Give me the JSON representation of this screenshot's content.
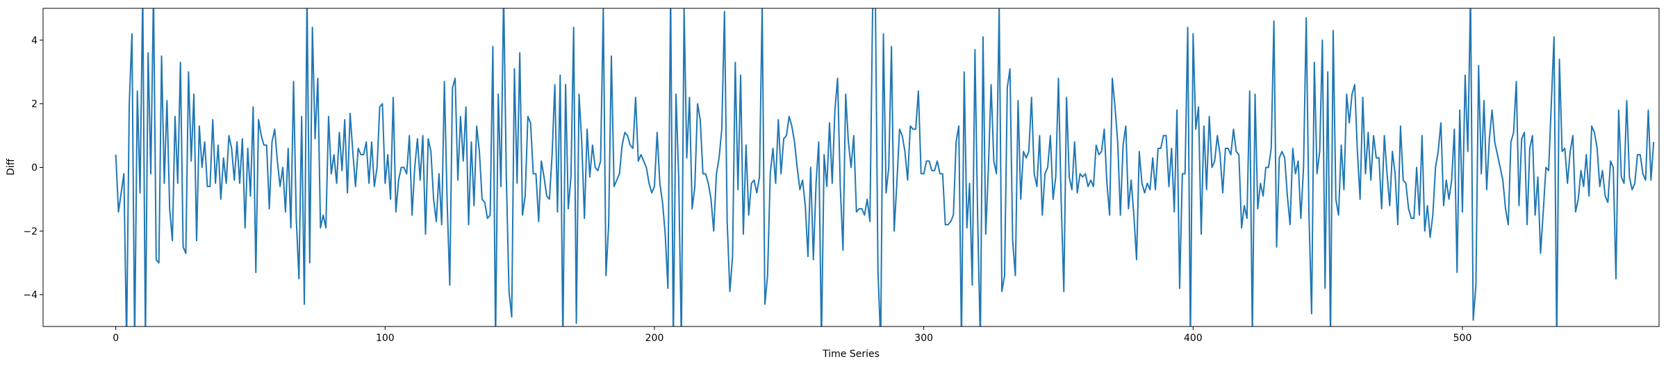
{
  "chart_data": {
    "type": "line",
    "title": "",
    "xlabel": "Time Series",
    "ylabel": "Diff",
    "xlim": [
      -27,
      573
    ],
    "ylim": [
      -5,
      5
    ],
    "xticks": [
      0,
      100,
      200,
      300,
      400,
      500
    ],
    "xtick_labels": [
      "0",
      "100",
      "200",
      "300",
      "400",
      "500"
    ],
    "yticks": [
      -4,
      -2,
      0,
      2,
      4
    ],
    "ytick_labels": [
      "−4",
      "−2",
      "0",
      "2",
      "4"
    ],
    "grid": false,
    "legend": "none",
    "line_color": "#1f77b4",
    "series": [
      {
        "x_start": 0,
        "x_step": 1,
        "values": [
          0.4,
          -1.4,
          -0.8,
          -0.2,
          -5.5,
          2.0,
          4.2,
          -5.5,
          2.4,
          -0.8,
          5.5,
          -5.5,
          3.6,
          -0.2,
          5.5,
          -2.9,
          -3.0,
          3.5,
          -0.5,
          2.1,
          -1.3,
          -2.3,
          1.6,
          -0.5,
          3.3,
          -2.5,
          -2.7,
          3.0,
          0.2,
          2.3,
          -2.3,
          1.3,
          0.0,
          0.8,
          -0.6,
          -0.6,
          1.5,
          -0.5,
          0.7,
          -1.0,
          0.3,
          -0.5,
          1.0,
          0.6,
          -0.4,
          0.8,
          -0.5,
          0.9,
          -1.9,
          0.6,
          -0.9,
          1.9,
          -3.3,
          1.5,
          1.0,
          0.7,
          0.7,
          -1.3,
          0.8,
          1.2,
          0.2,
          -0.6,
          0.0,
          -1.4,
          0.6,
          -1.9,
          2.7,
          -1.6,
          -3.5,
          1.6,
          -4.3,
          5.5,
          -3.0,
          4.4,
          0.9,
          2.8,
          -1.9,
          -1.5,
          -1.9,
          1.6,
          -0.2,
          0.4,
          -0.5,
          1.1,
          -0.1,
          1.5,
          -0.8,
          1.7,
          0.5,
          -0.6,
          0.6,
          0.4,
          0.4,
          0.8,
          -0.5,
          0.8,
          -0.6,
          0.0,
          1.9,
          2.0,
          -0.5,
          0.4,
          -1.0,
          2.2,
          -1.4,
          -0.4,
          0.0,
          0.0,
          -0.2,
          1.0,
          -1.5,
          0.0,
          0.9,
          -0.4,
          1.0,
          -2.1,
          0.9,
          0.5,
          -1.0,
          -1.7,
          -0.2,
          -1.8,
          2.7,
          -1.0,
          -3.7,
          2.5,
          2.8,
          -0.4,
          1.6,
          0.2,
          1.9,
          -1.8,
          0.8,
          -1.2,
          1.3,
          0.5,
          -1.0,
          -1.1,
          -1.6,
          -1.5,
          3.8,
          -5.5,
          2.3,
          -0.6,
          5.5,
          -0.3,
          -3.9,
          -4.7,
          3.1,
          -0.5,
          3.6,
          -1.5,
          -0.9,
          1.6,
          1.4,
          -0.2,
          -0.2,
          -1.7,
          0.2,
          -0.3,
          -0.9,
          -1.0,
          0.4,
          2.6,
          -1.4,
          2.9,
          -5.5,
          2.6,
          -1.3,
          -0.3,
          4.4,
          -4.9,
          2.3,
          0.8,
          -1.6,
          1.2,
          -0.3,
          0.7,
          0.0,
          -0.1,
          0.2,
          5.0,
          -3.4,
          -1.8,
          3.5,
          -0.6,
          -0.4,
          -0.2,
          0.7,
          1.1,
          1.0,
          0.7,
          0.6,
          2.2,
          0.2,
          0.4,
          0.2,
          0.0,
          -0.5,
          -0.8,
          -0.6,
          1.1,
          -0.5,
          -1.1,
          -2.1,
          -3.8,
          5.5,
          -5.5,
          2.3,
          -0.3,
          -5.5,
          5.0,
          0.3,
          2.2,
          -1.3,
          -0.6,
          2.0,
          1.5,
          -0.2,
          -0.2,
          -0.5,
          -1.0,
          -2.0,
          -0.2,
          0.3,
          1.2,
          4.9,
          -1.7,
          -3.9,
          -2.8,
          3.3,
          -0.7,
          2.9,
          -2.1,
          0.7,
          -1.5,
          -0.5,
          -0.4,
          -0.8,
          -0.3,
          5.1,
          -4.3,
          -3.4,
          -0.2,
          0.6,
          -0.5,
          1.5,
          -0.2,
          0.9,
          1.0,
          1.6,
          1.3,
          0.8,
          0.0,
          -0.7,
          -0.4,
          -1.2,
          -2.8,
          0.0,
          -2.9,
          -0.5,
          0.8,
          -5.5,
          0.4,
          -0.6,
          1.4,
          -0.5,
          1.8,
          2.8,
          -0.6,
          -2.6,
          2.3,
          0.8,
          0.0,
          1.0,
          -1.4,
          -1.3,
          -1.3,
          -1.5,
          -1.0,
          -1.7,
          5.0,
          5.5,
          -3.3,
          -5.5,
          4.2,
          -0.8,
          0.0,
          3.8,
          -2.0,
          -0.5,
          1.2,
          1.0,
          0.5,
          -0.4,
          1.3,
          1.2,
          1.2,
          2.4,
          -0.2,
          -0.2,
          0.2,
          0.2,
          -0.1,
          -0.1,
          0.2,
          -0.2,
          -0.2,
          -1.8,
          -1.8,
          -1.7,
          -1.5,
          0.8,
          1.3,
          -5.5,
          3.0,
          -1.9,
          -0.5,
          -3.7,
          3.7,
          -1.6,
          -5.5,
          4.1,
          -2.1,
          0.0,
          2.6,
          0.2,
          -0.2,
          5.0,
          -3.9,
          -3.4,
          2.5,
          3.1,
          -2.3,
          -3.4,
          2.1,
          -1.0,
          0.5,
          0.3,
          0.5,
          2.2,
          -0.2,
          -0.6,
          1.0,
          -1.5,
          -0.2,
          0.0,
          1.0,
          -1.0,
          -0.3,
          2.8,
          -1.0,
          -3.9,
          2.2,
          -0.3,
          -0.7,
          0.8,
          -0.8,
          -0.2,
          -0.3,
          -0.2,
          -0.6,
          -0.4,
          -0.6,
          0.7,
          0.4,
          0.5,
          1.2,
          -0.5,
          -1.5,
          2.8,
          1.9,
          0.8,
          -1.5,
          0.7,
          1.3,
          -1.3,
          -0.4,
          -1.5,
          -2.9,
          0.5,
          -0.5,
          -0.8,
          -0.5,
          -0.7,
          0.3,
          -0.7,
          0.6,
          0.6,
          1.0,
          1.0,
          -0.6,
          0.6,
          -1.4,
          1.8,
          -3.8,
          -0.2,
          -0.2,
          4.4,
          -5.5,
          4.2,
          1.2,
          1.9,
          -2.1,
          1.3,
          -0.7,
          1.6,
          0.0,
          0.2,
          1.0,
          0.4,
          -0.8,
          0.6,
          0.6,
          0.4,
          1.2,
          0.5,
          0.4,
          -1.9,
          -1.2,
          -1.6,
          2.4,
          -5.3,
          2.3,
          -1.3,
          -0.5,
          -0.9,
          0.0,
          0.0,
          0.6,
          4.6,
          -2.5,
          0.3,
          0.5,
          0.3,
          -0.9,
          -1.8,
          0.6,
          -0.2,
          0.2,
          -1.6,
          0.0,
          4.7,
          -1.4,
          -4.6,
          3.3,
          -0.2,
          0.5,
          4.0,
          -3.8,
          3.0,
          -5.5,
          4.3,
          -1.0,
          -1.5,
          0.7,
          -0.7,
          2.3,
          1.4,
          2.3,
          2.6,
          0.5,
          -1.0,
          2.2,
          -0.2,
          1.1,
          -0.4,
          1.0,
          0.3,
          0.3,
          -1.3,
          1.0,
          -0.2,
          -1.2,
          0.5,
          -0.2,
          -1.8,
          1.3,
          -0.4,
          -0.5,
          -1.3,
          -1.6,
          -1.6,
          0.0,
          -1.5,
          1.0,
          -2.0,
          -1.2,
          -2.2,
          -1.5,
          0.0,
          0.5,
          1.4,
          -1.2,
          -0.4,
          -1.0,
          -0.4,
          1.2,
          -3.3,
          1.8,
          -1.4,
          2.9,
          0.5,
          5.5,
          -4.8,
          -3.7,
          3.2,
          -0.2,
          2.1,
          -0.7,
          0.9,
          1.8,
          0.8,
          0.4,
          0.0,
          -0.4,
          -1.3,
          -1.8,
          0.8,
          1.1,
          2.7,
          -1.2,
          0.9,
          1.1,
          -1.8,
          0.6,
          1.0,
          -1.5,
          -0.3,
          -2.7,
          -1.4,
          0.0,
          -0.1,
          2.0,
          4.1,
          -5.5,
          3.4,
          0.5,
          0.6,
          -0.5,
          0.5,
          1.0,
          -1.4,
          -1.0,
          -0.1,
          -0.6,
          0.4,
          -0.9,
          1.3,
          1.1,
          0.6,
          -0.6,
          -0.1,
          -0.9,
          -1.1,
          0.2,
          0.0,
          -3.5,
          1.8,
          -0.3,
          -0.5,
          2.1,
          -0.3,
          -0.7,
          -0.5,
          0.4,
          0.4,
          -0.2,
          -0.4,
          1.8,
          -0.4,
          0.8
        ]
      }
    ]
  }
}
